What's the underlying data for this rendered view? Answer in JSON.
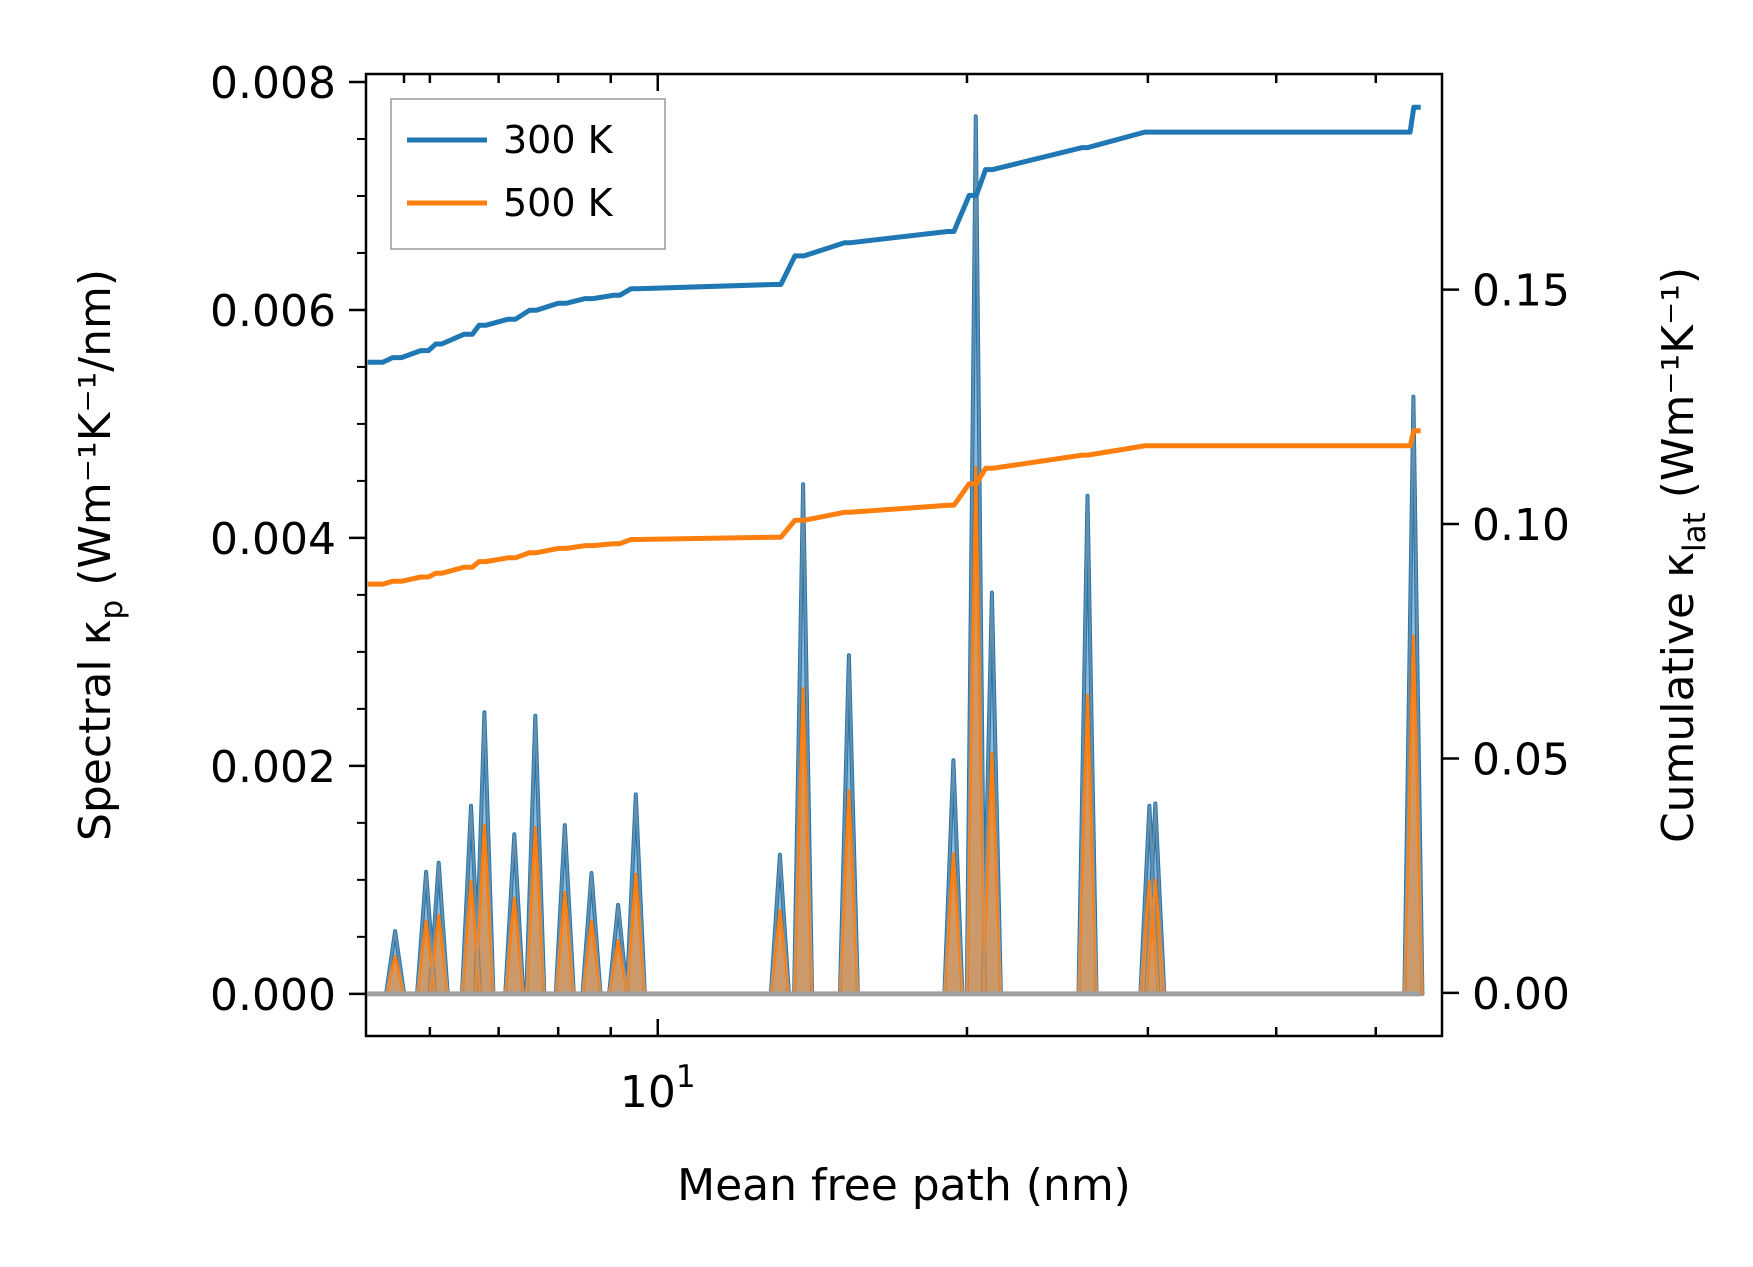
{
  "chart_data": {
    "type": "line",
    "xscale": "log",
    "xlabel": "Mean free path (nm)",
    "x_tick_major": {
      "value": 10,
      "label_base": "10",
      "label_exp": "1"
    },
    "xlim": [
      5.2,
      58
    ],
    "y_left": {
      "label_main": "Spectral κ",
      "label_sub": "p",
      "label_units": " (Wm⁻¹K⁻¹/nm)",
      "ylim": [
        -0.00037,
        0.00807
      ],
      "ticks": [
        0.0,
        0.002,
        0.004,
        0.006,
        0.008
      ],
      "tick_labels": [
        "0.000",
        "0.002",
        "0.004",
        "0.006",
        "0.008"
      ]
    },
    "y_right": {
      "label_main": "Cumulative κ",
      "label_sub": "lat",
      "label_units": " (Wm⁻¹K⁻¹)",
      "ylim": [
        -0.0092,
        0.196
      ],
      "ticks": [
        0.0,
        0.05,
        0.1,
        0.15
      ],
      "tick_labels": [
        "0.00",
        "0.05",
        "0.10",
        "0.15"
      ]
    },
    "legend": {
      "position": "top-left",
      "entries": [
        "300 K",
        "500 K"
      ]
    },
    "colors": {
      "t300": "#1f77b4",
      "t500": "#ff7f0e",
      "fill": "#a0a0a0"
    },
    "spectral_peaks": [
      {
        "x": 5.55,
        "v300": 0.00055,
        "v500": 0.00033
      },
      {
        "x": 5.95,
        "v300": 0.00107,
        "v500": 0.00064
      },
      {
        "x": 6.12,
        "v300": 0.00115,
        "v500": 0.00069
      },
      {
        "x": 6.58,
        "v300": 0.00165,
        "v500": 0.00099
      },
      {
        "x": 6.78,
        "v300": 0.00247,
        "v500": 0.00148
      },
      {
        "x": 7.25,
        "v300": 0.0014,
        "v500": 0.00084
      },
      {
        "x": 7.6,
        "v300": 0.00244,
        "v500": 0.00146
      },
      {
        "x": 8.12,
        "v300": 0.00148,
        "v500": 0.00089
      },
      {
        "x": 8.62,
        "v300": 0.00106,
        "v500": 0.00064
      },
      {
        "x": 9.15,
        "v300": 0.00078,
        "v500": 0.00047
      },
      {
        "x": 9.52,
        "v300": 0.00175,
        "v500": 0.00105
      },
      {
        "x": 13.15,
        "v300": 0.00122,
        "v500": 0.00073
      },
      {
        "x": 13.85,
        "v300": 0.00447,
        "v500": 0.00268
      },
      {
        "x": 15.35,
        "v300": 0.00297,
        "v500": 0.00178
      },
      {
        "x": 19.4,
        "v300": 0.00205,
        "v500": 0.00123
      },
      {
        "x": 20.4,
        "v300": 0.0077,
        "v500": 0.00462
      },
      {
        "x": 21.15,
        "v300": 0.00352,
        "v500": 0.00211
      },
      {
        "x": 26.2,
        "v300": 0.00437,
        "v500": 0.00262
      },
      {
        "x": 30.1,
        "v300": 0.00165,
        "v500": 0.00099
      },
      {
        "x": 30.5,
        "v300": 0.00167,
        "v500": 0.001
      },
      {
        "x": 54.4,
        "v300": 0.00524,
        "v500": 0.00314
      }
    ],
    "series": [
      {
        "name": "300 K",
        "x": [
          5.22,
          5.4,
          5.52,
          5.63,
          5.88,
          5.98,
          6.08,
          6.16,
          6.48,
          6.6,
          6.7,
          6.8,
          7.15,
          7.27,
          7.5,
          7.62,
          8.0,
          8.15,
          8.5,
          8.65,
          9.05,
          9.18,
          9.42,
          9.55,
          12.95,
          13.18,
          13.6,
          13.88,
          15.2,
          15.38,
          19.15,
          19.42,
          20.1,
          20.42,
          20.85,
          21.18,
          25.9,
          26.22,
          29.8,
          30.15,
          30.4,
          30.55,
          54.0,
          54.45,
          55.3
        ],
        "y": [
          0.1345,
          0.1345,
          0.1355,
          0.1355,
          0.137,
          0.137,
          0.1384,
          0.1384,
          0.1405,
          0.1405,
          0.1424,
          0.1424,
          0.1437,
          0.1437,
          0.1456,
          0.1456,
          0.1471,
          0.1471,
          0.1481,
          0.1481,
          0.1488,
          0.1488,
          0.1502,
          0.1502,
          0.1511,
          0.1511,
          0.1572,
          0.1572,
          0.16,
          0.16,
          0.1624,
          0.1624,
          0.1701,
          0.1701,
          0.1756,
          0.1756,
          0.1803,
          0.1803,
          0.1836,
          0.1836,
          0.1836,
          0.1836,
          0.1836,
          0.1889,
          0.1889
        ]
      },
      {
        "name": "500 K",
        "x": [
          5.22,
          5.4,
          5.52,
          5.63,
          5.88,
          5.98,
          6.08,
          6.16,
          6.48,
          6.6,
          6.7,
          6.8,
          7.15,
          7.27,
          7.5,
          7.62,
          8.0,
          8.15,
          8.5,
          8.65,
          9.05,
          9.18,
          9.42,
          9.55,
          12.95,
          13.18,
          13.6,
          13.88,
          15.2,
          15.38,
          19.15,
          19.42,
          20.1,
          20.42,
          20.85,
          21.18,
          25.9,
          26.22,
          29.8,
          30.15,
          30.4,
          30.55,
          54.0,
          54.45,
          55.3
        ],
        "y": [
          0.0872,
          0.0872,
          0.0878,
          0.0878,
          0.0887,
          0.0887,
          0.0895,
          0.0895,
          0.0908,
          0.0908,
          0.092,
          0.092,
          0.0928,
          0.0928,
          0.0939,
          0.0939,
          0.0948,
          0.0948,
          0.0954,
          0.0954,
          0.0958,
          0.0958,
          0.0967,
          0.0967,
          0.0972,
          0.0972,
          0.1008,
          0.1008,
          0.1025,
          0.1025,
          0.104,
          0.104,
          0.1086,
          0.1086,
          0.1119,
          0.1119,
          0.1147,
          0.1147,
          0.1167,
          0.1167,
          0.1167,
          0.1167,
          0.1167,
          0.1199,
          0.1199
        ]
      }
    ]
  }
}
